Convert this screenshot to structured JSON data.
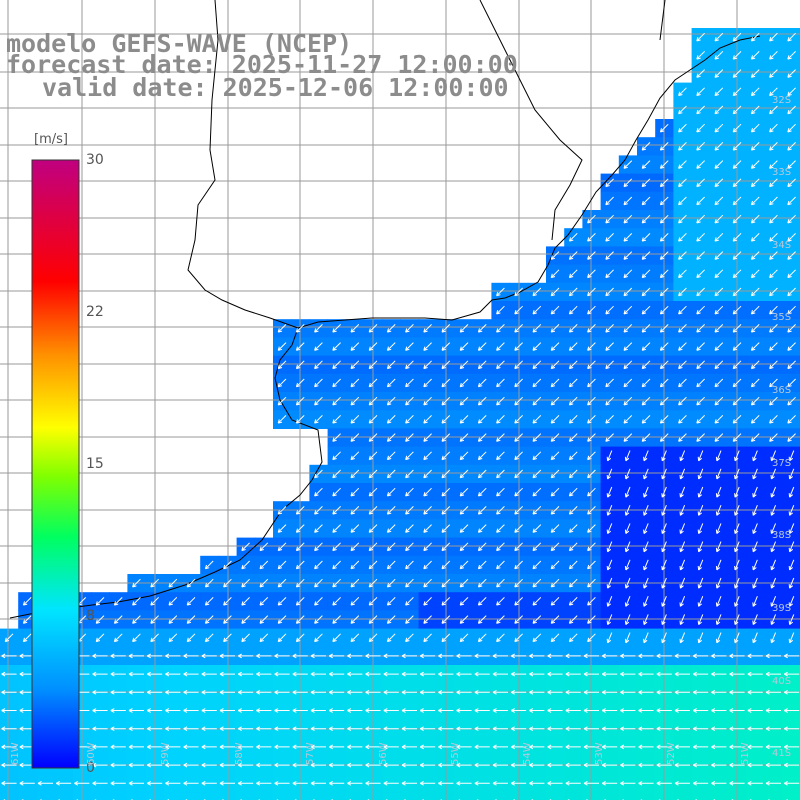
{
  "title": {
    "line1": "modelo GEFS-WAVE (NCEP)",
    "line2": "forecast date: 2025-11-27 12:00:00",
    "line3": "valid date: 2025-12-06 12:00:00"
  },
  "colorbar": {
    "unit": "[m/s]",
    "min": 0,
    "max": 30,
    "ticks": [
      "30",
      "22",
      "15",
      "8",
      "0"
    ],
    "colors": [
      "#0000ff",
      "#0090ff",
      "#00e5ff",
      "#00ff60",
      "#80ff00",
      "#ffff00",
      "#ff9000",
      "#ff0000",
      "#c00080"
    ]
  },
  "lat_labels": [
    "32S",
    "33S",
    "34S",
    "35S",
    "36S",
    "37S",
    "38S",
    "39S",
    "40S",
    "41S"
  ],
  "lon_labels": [
    "61W",
    "60W",
    "59W",
    "58W",
    "57W",
    "56W",
    "55W",
    "54W",
    "53W",
    "52W",
    "51W"
  ]
}
